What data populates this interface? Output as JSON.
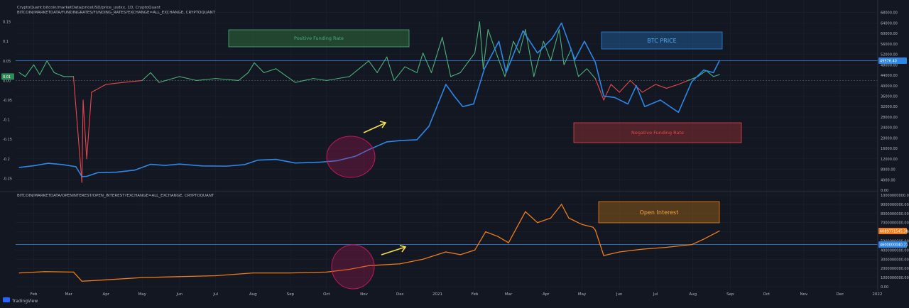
{
  "colors": {
    "background": "#131722",
    "grid": "#1e2230",
    "axis_text": "#b2b5be",
    "funding_pos": "#4caf7a",
    "funding_neg": "#e5484d",
    "btc": "#2e86e6",
    "oi": "#f07c1a",
    "zone_green": "#2f6b3a",
    "zone_blue": "#1f5f9c",
    "zone_red": "#7a2a30",
    "zone_orange": "#8a5a16",
    "circle": "#c2185b",
    "arrow": "#f5e04a"
  },
  "brand": {
    "label": "TradingView"
  },
  "chart_data": [
    {
      "type": "line",
      "title": "CryptoQuant:bitcoin/marketData/priceUSD/price_usdxx, 1D, CryptoQuant",
      "subtitle": "BITCOIN/MARKETDATA/FUNDINGRATES/FUNDING_RATES?EXCHANGE=ALL_EXCHANGE, CRYPTOQUANT",
      "left_ticks": [
        "0.15",
        "0.1",
        "0.05",
        "0.00",
        "-0.05",
        "-0.1",
        "-0.15",
        "-0.2",
        "-0.25"
      ],
      "right_ticks": [
        "68000.00",
        "64000.00",
        "60000.00",
        "56000.00",
        "52000.00",
        "48000.00",
        "44000.00",
        "40000.00",
        "36000.00",
        "32000.00",
        "28000.00",
        "24000.00",
        "20000.00",
        "16000.00",
        "12000.00",
        "8000.00",
        "4000.00",
        "0.00"
      ],
      "left_badge": "0.01",
      "price_badge": "49576.40",
      "ylim_left": [
        -0.28,
        0.18
      ],
      "ylim_right": [
        0,
        69000
      ],
      "annotations": [
        "Positive Funding Rate",
        "BTC PRICE",
        "Negative Funding Rate"
      ],
      "series": [
        {
          "axis": "right",
          "points": [
            [
              "2020-01-20",
              8700
            ],
            [
              "2020-02-01",
              9350
            ],
            [
              "2020-02-13",
              10300
            ],
            [
              "2020-02-25",
              9800
            ],
            [
              "2020-03-07",
              9000
            ],
            [
              "2020-03-12",
              5200
            ],
            [
              "2020-03-16",
              5300
            ],
            [
              "2020-03-25",
              6700
            ],
            [
              "2020-04-10",
              6900
            ],
            [
              "2020-04-25",
              7700
            ],
            [
              "2020-05-08",
              9900
            ],
            [
              "2020-05-20",
              9500
            ],
            [
              "2020-06-01",
              10000
            ],
            [
              "2020-06-20",
              9300
            ],
            [
              "2020-07-10",
              9200
            ],
            [
              "2020-07-25",
              9800
            ],
            [
              "2020-08-05",
              11500
            ],
            [
              "2020-08-20",
              11800
            ],
            [
              "2020-09-05",
              10400
            ],
            [
              "2020-09-25",
              10700
            ],
            [
              "2020-10-10",
              11300
            ],
            [
              "2020-10-25",
              13000
            ],
            [
              "2020-11-05",
              15500
            ],
            [
              "2020-11-20",
              18500
            ],
            [
              "2020-12-01",
              19000
            ],
            [
              "2020-12-15",
              19300
            ],
            [
              "2020-12-25",
              24500
            ],
            [
              "2021-01-08",
              40500
            ],
            [
              "2021-01-15",
              36000
            ],
            [
              "2021-01-22",
              32000
            ],
            [
              "2021-01-31",
              33000
            ],
            [
              "2021-02-09",
              46500
            ],
            [
              "2021-02-21",
              57000
            ],
            [
              "2021-02-27",
              45000
            ],
            [
              "2021-03-13",
              61000
            ],
            [
              "2021-03-25",
              52500
            ],
            [
              "2021-04-06",
              58000
            ],
            [
              "2021-04-14",
              64000
            ],
            [
              "2021-04-25",
              50000
            ],
            [
              "2021-05-03",
              57000
            ],
            [
              "2021-05-12",
              49000
            ],
            [
              "2021-05-19",
              36000
            ],
            [
              "2021-05-28",
              35500
            ],
            [
              "2021-06-08",
              33000
            ],
            [
              "2021-06-15",
              40000
            ],
            [
              "2021-06-22",
              32000
            ],
            [
              "2021-07-05",
              34500
            ],
            [
              "2021-07-20",
              29800
            ],
            [
              "2021-07-31",
              41500
            ],
            [
              "2021-08-10",
              46000
            ],
            [
              "2021-08-18",
              45000
            ],
            [
              "2021-08-23",
              49576
            ]
          ]
        },
        {
          "axis": "left",
          "points": [
            [
              "2020-01-20",
              0.02
            ],
            [
              "2020-01-25",
              0.01
            ],
            [
              "2020-02-01",
              0.04
            ],
            [
              "2020-02-06",
              0.015
            ],
            [
              "2020-02-12",
              0.05
            ],
            [
              "2020-02-18",
              0.02
            ],
            [
              "2020-02-26",
              0.01
            ],
            [
              "2020-03-05",
              0.01
            ],
            [
              "2020-03-12",
              -0.26
            ],
            [
              "2020-03-13",
              -0.05
            ],
            [
              "2020-03-16",
              -0.2
            ],
            [
              "2020-03-20",
              -0.03
            ],
            [
              "2020-04-01",
              -0.01
            ],
            [
              "2020-04-15",
              -0.005
            ],
            [
              "2020-05-01",
              0.0
            ],
            [
              "2020-05-08",
              0.02
            ],
            [
              "2020-05-15",
              -0.005
            ],
            [
              "2020-06-01",
              0.01
            ],
            [
              "2020-06-15",
              0.0
            ],
            [
              "2020-07-01",
              0.005
            ],
            [
              "2020-07-20",
              0.0
            ],
            [
              "2020-07-28",
              0.02
            ],
            [
              "2020-08-02",
              0.045
            ],
            [
              "2020-08-10",
              0.02
            ],
            [
              "2020-08-20",
              0.03
            ],
            [
              "2020-09-05",
              -0.005
            ],
            [
              "2020-09-20",
              0.005
            ],
            [
              "2020-10-01",
              0.0
            ],
            [
              "2020-10-20",
              0.01
            ],
            [
              "2020-10-28",
              0.03
            ],
            [
              "2020-11-05",
              0.05
            ],
            [
              "2020-11-12",
              0.02
            ],
            [
              "2020-11-20",
              0.06
            ],
            [
              "2020-11-26",
              0.0
            ],
            [
              "2020-12-05",
              0.035
            ],
            [
              "2020-12-15",
              0.02
            ],
            [
              "2020-12-20",
              0.07
            ],
            [
              "2020-12-27",
              0.02
            ],
            [
              "2021-01-05",
              0.11
            ],
            [
              "2021-01-12",
              0.01
            ],
            [
              "2021-01-20",
              0.02
            ],
            [
              "2021-02-01",
              0.07
            ],
            [
              "2021-02-05",
              0.15
            ],
            [
              "2021-02-08",
              0.03
            ],
            [
              "2021-02-12",
              0.13
            ],
            [
              "2021-02-20",
              0.06
            ],
            [
              "2021-02-26",
              0.01
            ],
            [
              "2021-03-05",
              0.1
            ],
            [
              "2021-03-10",
              0.07
            ],
            [
              "2021-03-15",
              0.13
            ],
            [
              "2021-03-22",
              0.01
            ],
            [
              "2021-03-30",
              0.1
            ],
            [
              "2021-04-05",
              0.05
            ],
            [
              "2021-04-12",
              0.13
            ],
            [
              "2021-04-16",
              0.04
            ],
            [
              "2021-04-22",
              0.08
            ],
            [
              "2021-04-28",
              0.01
            ],
            [
              "2021-05-05",
              0.03
            ],
            [
              "2021-05-12",
              0.005
            ],
            [
              "2021-05-19",
              -0.05
            ],
            [
              "2021-05-25",
              -0.01
            ],
            [
              "2021-06-01",
              -0.03
            ],
            [
              "2021-06-10",
              0.0
            ],
            [
              "2021-06-20",
              -0.03
            ],
            [
              "2021-07-01",
              -0.01
            ],
            [
              "2021-07-10",
              -0.02
            ],
            [
              "2021-07-20",
              -0.01
            ],
            [
              "2021-07-28",
              0.0
            ],
            [
              "2021-08-05",
              0.01
            ],
            [
              "2021-08-12",
              0.025
            ],
            [
              "2021-08-18",
              0.01
            ],
            [
              "2021-08-23",
              0.015
            ]
          ]
        }
      ]
    },
    {
      "type": "line",
      "title": "BITCOIN/MARKETDATA/OPENINTEREST/OPEN_INTEREST?EXCHANGE=ALL_EXCHANGE, CRYPTOQUANT",
      "right_ticks": [
        "10000000000.00",
        "9000000000.00",
        "8000000000.00",
        "7000000000.00",
        "6000000000.00",
        "5000000000.00",
        "4000000000.00",
        "3000000000.00",
        "2000000000.00",
        "1000000000.00",
        "0.00"
      ],
      "oi_badge": "6089771545.30",
      "ref_badge": "4600000040.71",
      "ylim": [
        0,
        10000000000
      ],
      "annotations": [
        "Open Interest"
      ],
      "series": [
        {
          "points": [
            [
              "2020-01-20",
              1500000000
            ],
            [
              "2020-02-10",
              1650000000
            ],
            [
              "2020-03-05",
              1600000000
            ],
            [
              "2020-03-12",
              600000000
            ],
            [
              "2020-04-01",
              750000000
            ],
            [
              "2020-05-01",
              1000000000
            ],
            [
              "2020-06-01",
              1100000000
            ],
            [
              "2020-07-01",
              1200000000
            ],
            [
              "2020-08-01",
              1500000000
            ],
            [
              "2020-09-01",
              1500000000
            ],
            [
              "2020-10-01",
              1600000000
            ],
            [
              "2020-10-20",
              1900000000
            ],
            [
              "2020-11-05",
              2300000000
            ],
            [
              "2020-12-01",
              2500000000
            ],
            [
              "2020-12-20",
              3000000000
            ],
            [
              "2021-01-08",
              3800000000
            ],
            [
              "2021-01-20",
              3500000000
            ],
            [
              "2021-02-01",
              4000000000
            ],
            [
              "2021-02-10",
              6000000000
            ],
            [
              "2021-02-20",
              5500000000
            ],
            [
              "2021-03-01",
              4800000000
            ],
            [
              "2021-03-15",
              8200000000
            ],
            [
              "2021-03-25",
              7000000000
            ],
            [
              "2021-04-05",
              7500000000
            ],
            [
              "2021-04-14",
              9000000000
            ],
            [
              "2021-04-20",
              7500000000
            ],
            [
              "2021-05-01",
              6800000000
            ],
            [
              "2021-05-10",
              6500000000
            ],
            [
              "2021-05-12",
              6200000000
            ],
            [
              "2021-05-19",
              3400000000
            ],
            [
              "2021-06-01",
              3800000000
            ],
            [
              "2021-06-20",
              4100000000
            ],
            [
              "2021-07-10",
              4300000000
            ],
            [
              "2021-07-31",
              4600000000
            ],
            [
              "2021-08-10",
              5200000000
            ],
            [
              "2021-08-23",
              6089771545
            ]
          ]
        }
      ]
    }
  ],
  "x_axis": {
    "labels": [
      "Feb",
      "Mar",
      "Apr",
      "May",
      "Jun",
      "Jul",
      "Aug",
      "Sep",
      "Oct",
      "Nov",
      "Dec",
      "2021",
      "Feb",
      "Mar",
      "Apr",
      "May",
      "Jun",
      "Jul",
      "Aug",
      "Sep",
      "Oct",
      "Nov",
      "Dec",
      "2022"
    ]
  }
}
